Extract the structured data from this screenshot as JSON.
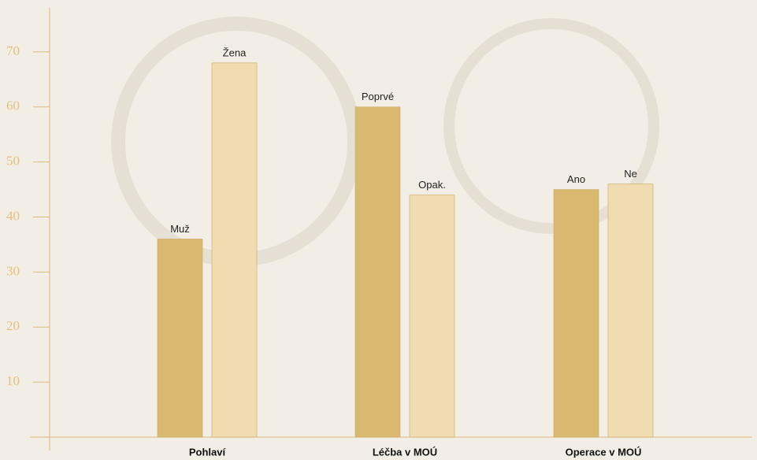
{
  "chart_data": {
    "type": "bar",
    "categories": [
      "Pohlaví",
      "Léčba v MOÚ",
      "Operace v MOÚ"
    ],
    "groups": [
      {
        "bars": [
          {
            "label": "Muž",
            "value": 36
          },
          {
            "label": "Žena",
            "value": 68
          }
        ]
      },
      {
        "bars": [
          {
            "label": "Poprvé",
            "value": 60
          },
          {
            "label": "Opak.",
            "value": 44
          }
        ]
      },
      {
        "bars": [
          {
            "label": "Ano",
            "value": 45
          },
          {
            "label": "Ne",
            "value": 46
          }
        ]
      }
    ],
    "colors": [
      "#d9b96f",
      "#f0dcb1"
    ],
    "ylim": [
      0,
      78
    ],
    "yticks": [
      10,
      20,
      30,
      40,
      50,
      60,
      70
    ]
  }
}
